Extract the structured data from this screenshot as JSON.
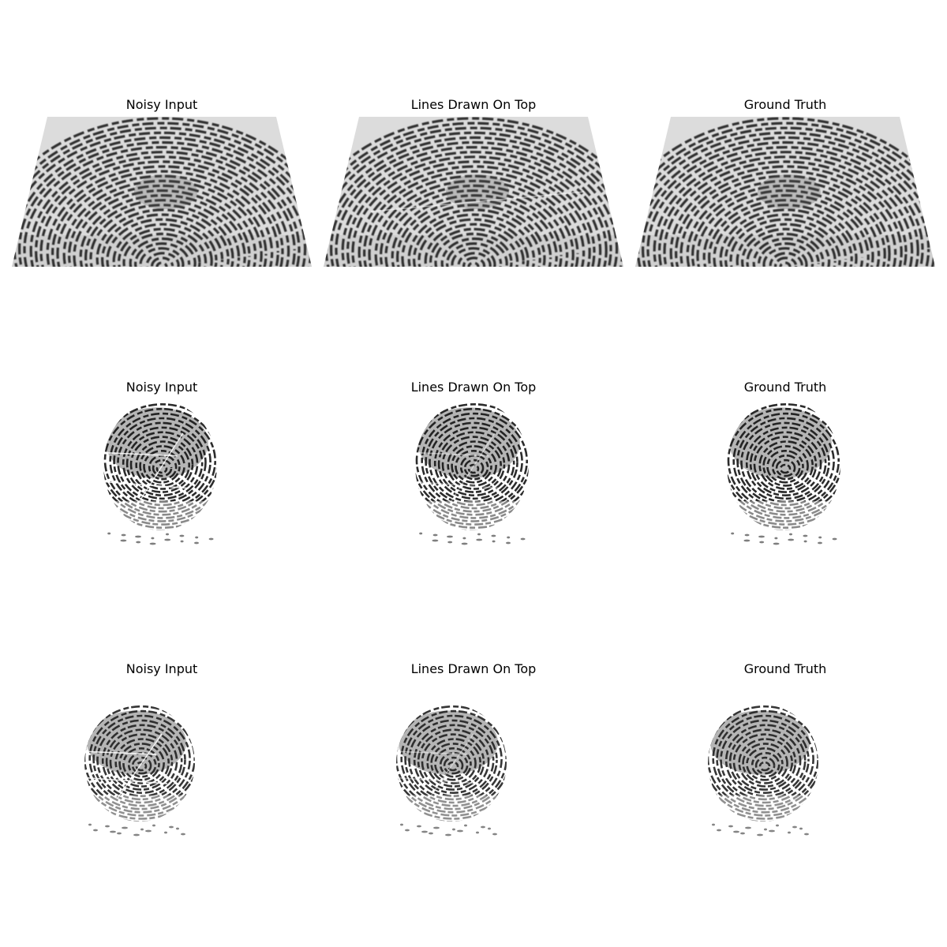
{
  "figure": {
    "column_titles": [
      "Noisy Input",
      "Lines Drawn On Top",
      "Ground Truth"
    ],
    "rows": [
      {
        "kind": "trapezoid-sensor-scan",
        "background_color": "#dcdcdc",
        "ridge_color": "#1e1e1e",
        "panels": [
          {
            "title": "Noisy Input"
          },
          {
            "title": "Lines Drawn On Top"
          },
          {
            "title": "Ground Truth"
          }
        ]
      },
      {
        "kind": "ink-fingerprint-oval",
        "background_color": "#ffffff",
        "ridge_color": "#141414",
        "panels": [
          {
            "title": "Noisy Input"
          },
          {
            "title": "Lines Drawn On Top"
          },
          {
            "title": "Ground Truth"
          }
        ]
      },
      {
        "kind": "ink-fingerprint-oval",
        "background_color": "#ffffff",
        "ridge_color": "#202020",
        "panels": [
          {
            "title": "Noisy Input"
          },
          {
            "title": "Lines Drawn On Top"
          },
          {
            "title": "Ground Truth"
          }
        ]
      }
    ]
  }
}
